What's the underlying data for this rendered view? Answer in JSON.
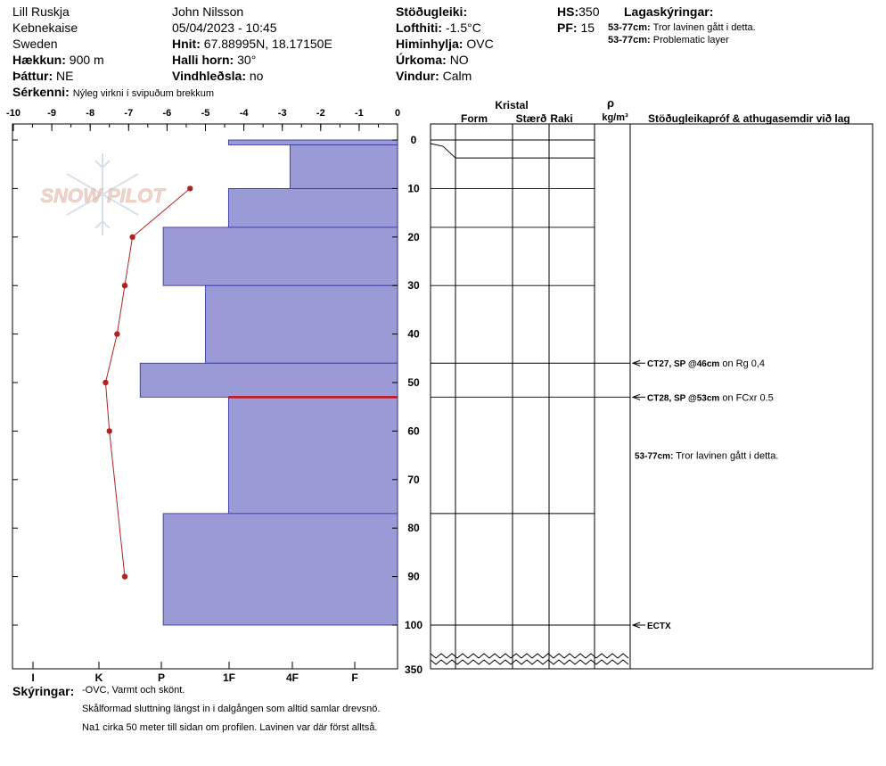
{
  "header": {
    "location": "Lill Ruskja",
    "area": "Kebnekaise",
    "country": "Sweden",
    "elevation_label": "Hækkun:",
    "elevation": "900 m",
    "aspect_label": "Þáttur:",
    "aspect": "NE",
    "feature_label": "Sérkenni:",
    "feature": "Nýleg virkni í svipuðum brekkum",
    "observer": "John Nilsson",
    "datetime": "05/04/2023 - 10:45",
    "coords_label": "Hnit:",
    "coords": "67.88995N, 18.17150E",
    "slope_label": "Halli horn:",
    "slope": "30°",
    "wind_loading_label": "Vindhleðsla:",
    "wind_loading": "no",
    "stability_label": "Stöðugleiki:",
    "air_temp_label": "Lofthiti:",
    "air_temp": "-1.5°C",
    "sky_label": "Himinhylja:",
    "sky": "OVC",
    "precip_label": "Úrkoma:",
    "precip": "NO",
    "wind_label": "Vindur:",
    "wind": "Calm",
    "hs_label": "HS:",
    "hs": "350",
    "pf_label": "PF:",
    "pf": "15",
    "layer_notes_label": "Lagaskýringar:",
    "layer_notes": [
      {
        "range": "53-77cm:",
        "text": "Tror lavinen gått i detta."
      },
      {
        "range": "53-77cm:",
        "text": "Problematic layer"
      }
    ]
  },
  "watermark": "SNOW PILOT",
  "columns": {
    "crystal": "Kristal",
    "form": "Form",
    "size": "Stærð",
    "moisture": "Raki",
    "density_symbol": "ρ",
    "density_unit": "kg/m³",
    "tests": "Stöðugleikapróf & athugasemdir við lag"
  },
  "chart_data": {
    "type": "bar",
    "temp_ticks": [
      "-10",
      "-9",
      "-8",
      "-7",
      "-6",
      "-5",
      "-4",
      "-3",
      "-2",
      "-1",
      "0"
    ],
    "hardness_ticks": [
      "I",
      "K",
      "P",
      "1F",
      "4F",
      "F"
    ],
    "depth_ticks": [
      "0",
      "10",
      "20",
      "30",
      "40",
      "50",
      "60",
      "70",
      "80",
      "90",
      "100"
    ],
    "depth_total_label": "350",
    "ylim": [
      0,
      108
    ],
    "xlim_temp": [
      -10,
      0
    ],
    "temperature_profile": [
      {
        "depth": 10,
        "temp": -5.4
      },
      {
        "depth": 20,
        "temp": -6.9
      },
      {
        "depth": 30,
        "temp": -7.1
      },
      {
        "depth": 40,
        "temp": -7.3
      },
      {
        "depth": 50,
        "temp": -7.6
      },
      {
        "depth": 60,
        "temp": -7.5
      },
      {
        "depth": 90,
        "temp": -7.1
      }
    ],
    "layers": [
      {
        "top": 0,
        "bottom": 1,
        "extent": -4.4
      },
      {
        "top": 1,
        "bottom": 10,
        "extent": -2.8
      },
      {
        "top": 10,
        "bottom": 18,
        "extent": -4.4
      },
      {
        "top": 18,
        "bottom": 30,
        "extent": -6.1
      },
      {
        "top": 30,
        "bottom": 46,
        "extent": -5.0
      },
      {
        "top": 46,
        "bottom": 53,
        "extent": -6.7
      },
      {
        "top": 53,
        "bottom": 77,
        "extent": -4.4
      },
      {
        "top": 77,
        "bottom": 100,
        "extent": -6.1
      }
    ],
    "problem_layer_depth": 53,
    "tests": [
      {
        "depth": 46,
        "code": "CT27, SP @46cm",
        "note": "on Rg 0,4"
      },
      {
        "depth": 53,
        "code": "CT28, SP @53cm",
        "note": "on FCxr 0.5"
      },
      {
        "depth": 65,
        "code": "53-77cm:",
        "note": "Tror lavinen gått i detta."
      },
      {
        "depth": 100,
        "code": "ECTX",
        "note": ""
      }
    ]
  },
  "notes": {
    "label": "Skýringar:",
    "lines": [
      "-OVC, Varmt och skönt.",
      "Skålformad sluttning längst in i dalgången som alltid samlar drevsnö.",
      "Na1 cirka 50 meter till sidan om profilen. Lavinen var där först alltså."
    ]
  },
  "colors": {
    "layer_fill": "#9a9ad6",
    "layer_stroke": "#2a2a9a",
    "temp_line": "#b22222",
    "problem_layer": "#cc1111",
    "watermark": "#e8b8a8"
  }
}
